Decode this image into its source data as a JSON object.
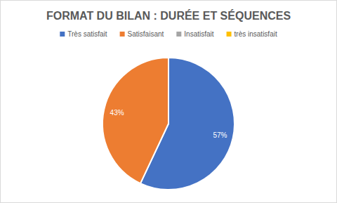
{
  "chart_data": {
    "type": "pie",
    "title": "FORMAT DU BILAN : DURÉE ET SÉQUENCES",
    "categories": [
      "Très satisfait",
      "Satisfaisant",
      "Insatisfait",
      "très insatisfait"
    ],
    "values": [
      57,
      43,
      0,
      0
    ],
    "value_labels": [
      "57%",
      "43%",
      null,
      null
    ],
    "colors": [
      "#4472c4",
      "#ed7d31",
      "#a5a5a5",
      "#ffc000"
    ],
    "legend": "top",
    "data_labels": true
  }
}
